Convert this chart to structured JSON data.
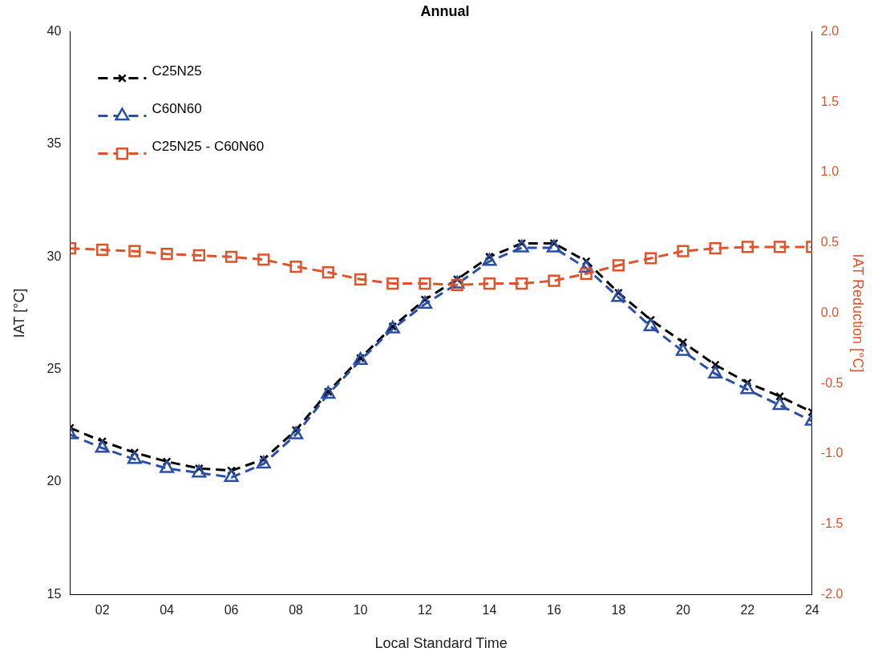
{
  "chart_data": {
    "type": "line",
    "title": "Annual",
    "xlabel": "Local Standard Time",
    "ylabel": "IAT [°C]",
    "y2label": "IAT Reduction [°C]",
    "x": [
      1,
      2,
      3,
      4,
      5,
      6,
      7,
      8,
      9,
      10,
      11,
      12,
      13,
      14,
      15,
      16,
      17,
      18,
      19,
      20,
      21,
      22,
      23,
      24
    ],
    "xlim": [
      1,
      24
    ],
    "xticks": [
      {
        "value": 2,
        "label": "02"
      },
      {
        "value": 4,
        "label": "04"
      },
      {
        "value": 6,
        "label": "06"
      },
      {
        "value": 8,
        "label": "08"
      },
      {
        "value": 10,
        "label": "10"
      },
      {
        "value": 12,
        "label": "12"
      },
      {
        "value": 14,
        "label": "14"
      },
      {
        "value": 16,
        "label": "16"
      },
      {
        "value": 18,
        "label": "18"
      },
      {
        "value": 20,
        "label": "20"
      },
      {
        "value": 22,
        "label": "22"
      },
      {
        "value": 24,
        "label": "24"
      }
    ],
    "ylim": [
      15,
      40
    ],
    "yticks": [
      15,
      20,
      25,
      30,
      35,
      40
    ],
    "y2lim": [
      -2,
      2
    ],
    "y2ticks": [
      {
        "value": -2,
        "label": "-2.0"
      },
      {
        "value": -1.5,
        "label": "-1.5"
      },
      {
        "value": -1,
        "label": "-1.0"
      },
      {
        "value": -0.5,
        "label": "-0.5"
      },
      {
        "value": 0,
        "label": "0.0"
      },
      {
        "value": 0.5,
        "label": "0.5"
      },
      {
        "value": 1,
        "label": "1.0"
      },
      {
        "value": 1.5,
        "label": "1.5"
      },
      {
        "value": 2,
        "label": "2.0"
      }
    ],
    "grid": false,
    "legend": "top left",
    "series": [
      {
        "name": "C25N25",
        "color": "#000000",
        "marker": "cross",
        "line_style": "dashed",
        "values": [
          22.4,
          21.8,
          21.3,
          20.9,
          20.6,
          20.5,
          21.0,
          22.3,
          24.0,
          25.5,
          26.9,
          28.1,
          29.0,
          30.0,
          30.6,
          30.6,
          29.8,
          28.4,
          27.2,
          26.2,
          25.2,
          24.4,
          23.8,
          23.1
        ]
      },
      {
        "name": "C60N60",
        "color": "#2a4fa8",
        "marker": "triangle",
        "line_style": "dashed",
        "values": [
          22.1,
          21.5,
          21.0,
          20.6,
          20.4,
          20.2,
          20.8,
          22.1,
          23.9,
          25.4,
          26.8,
          27.9,
          28.8,
          29.8,
          30.4,
          30.4,
          29.5,
          28.2,
          26.9,
          25.8,
          24.8,
          24.1,
          23.4,
          22.7
        ]
      },
      {
        "name": "C25N25 - C60N60",
        "color": "#e0522a",
        "marker": "square",
        "line_style": "dashed",
        "axis": "y2",
        "values": [
          0.46,
          0.45,
          0.44,
          0.42,
          0.41,
          0.4,
          0.38,
          0.33,
          0.29,
          0.24,
          0.21,
          0.21,
          0.2,
          0.21,
          0.21,
          0.23,
          0.28,
          0.34,
          0.39,
          0.44,
          0.46,
          0.47,
          0.47,
          0.47
        ]
      }
    ]
  }
}
